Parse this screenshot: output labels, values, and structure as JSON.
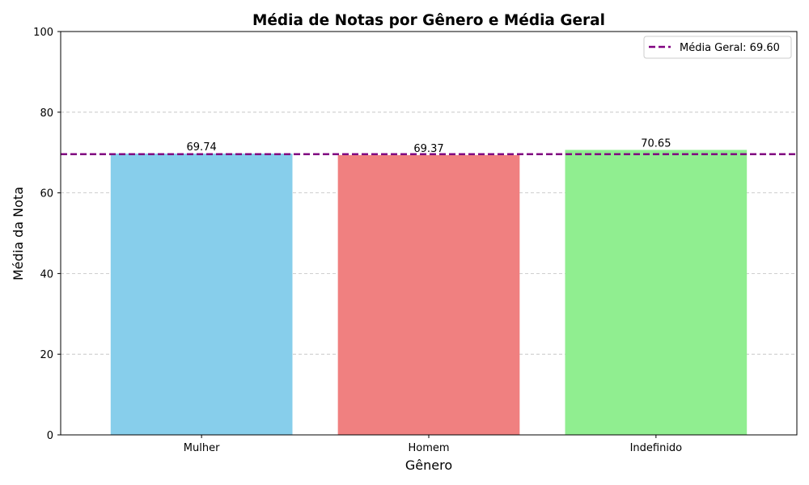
{
  "chart_data": {
    "type": "bar",
    "title": "Média de Notas por Gênero e Média Geral",
    "xlabel": "Gênero",
    "ylabel": "Média da Nota",
    "categories": [
      "Mulher",
      "Homem",
      "Indefinido"
    ],
    "values": [
      69.74,
      69.37,
      70.65
    ],
    "value_labels": [
      "69.74",
      "69.37",
      "70.65"
    ],
    "bar_colors": [
      "#87ceeb",
      "#f08080",
      "#90ee90"
    ],
    "ylim": [
      0,
      100
    ],
    "yticks": [
      0,
      20,
      40,
      60,
      80,
      100
    ],
    "grid": "y-dashed",
    "reference_line": {
      "value": 69.6,
      "label": "Média Geral: 69.60",
      "color": "#800080",
      "style": "dashed"
    },
    "legend_position": "top-right"
  }
}
